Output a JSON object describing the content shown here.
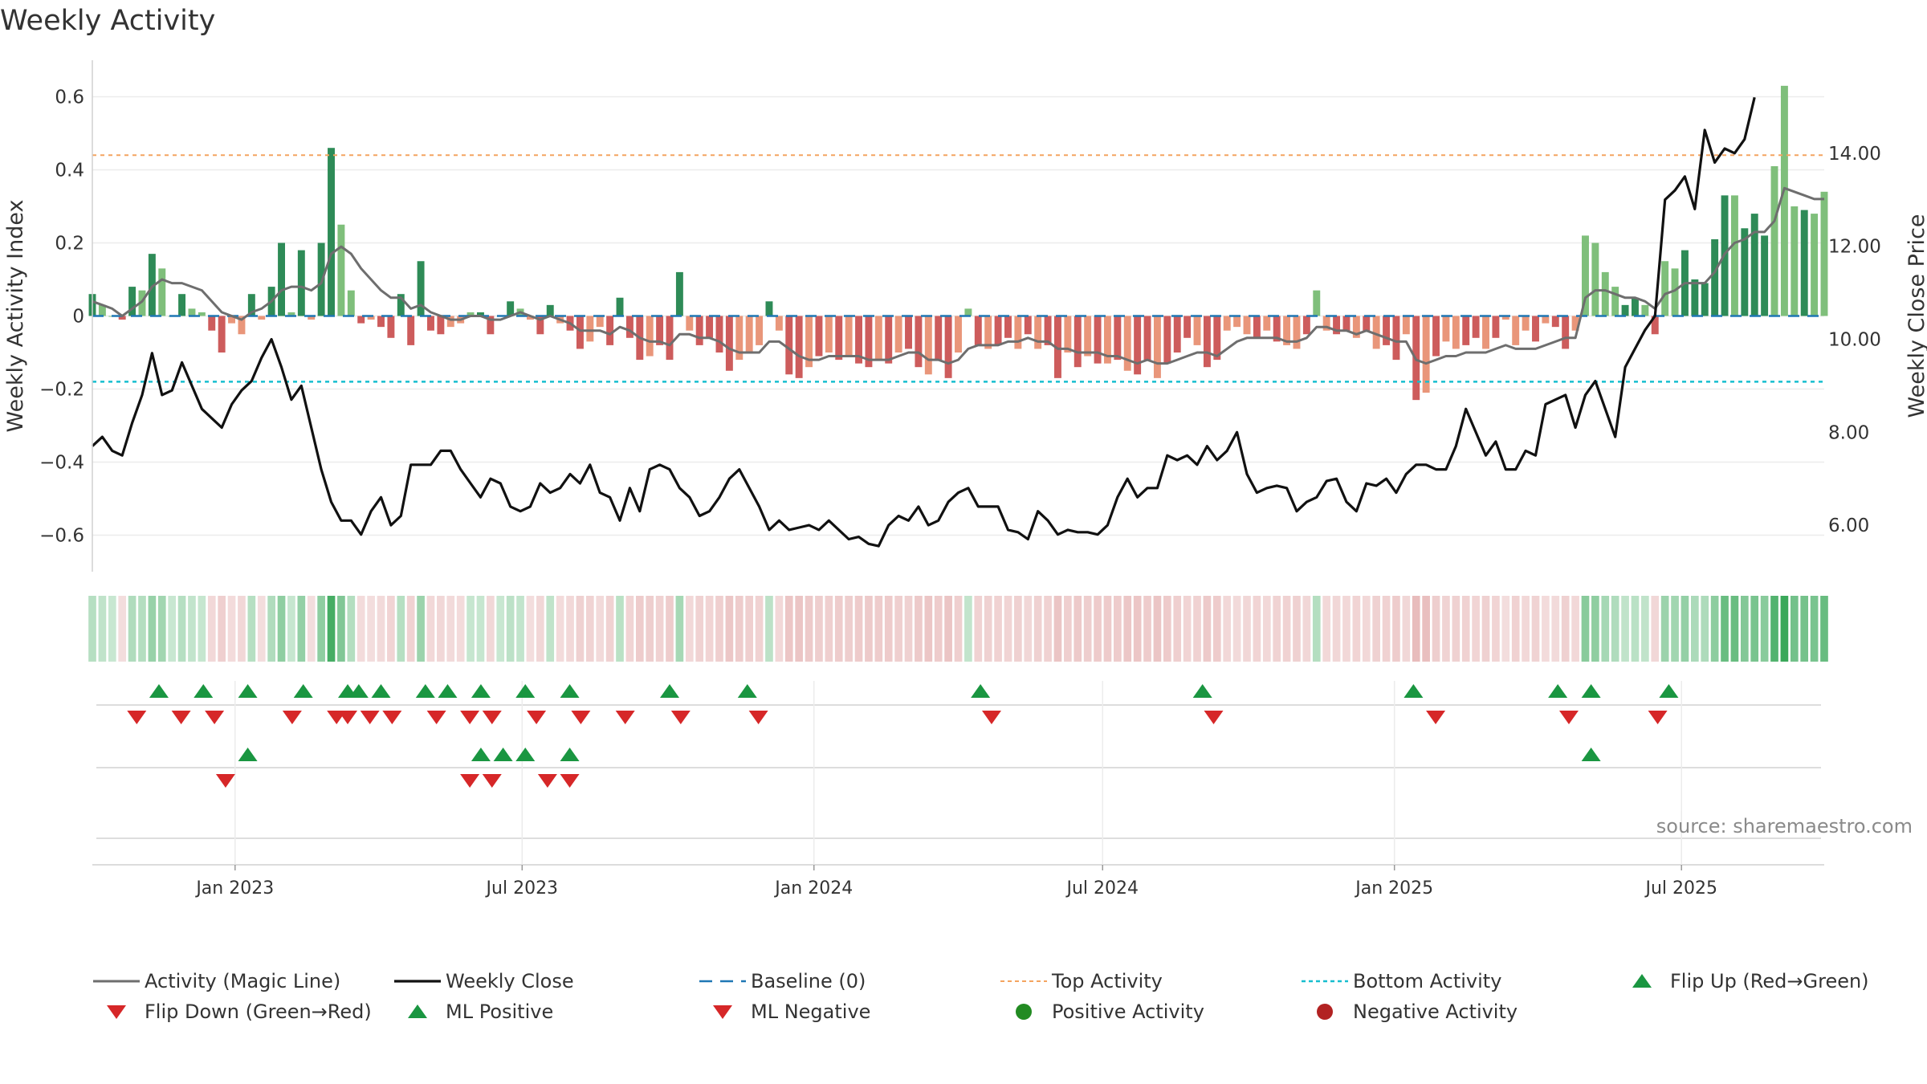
{
  "title": "Weekly Activity",
  "source": "source: sharemaestro.com",
  "colors": {
    "pos_strong": "#2e8b57",
    "pos_light": "#7fbf7b",
    "neg_strong": "#cd5c5c",
    "neg_light": "#e9967a",
    "magic_line": "#6e6e6e",
    "close": "#111111",
    "baseline": "#1f77b4",
    "top": "#f4a460",
    "bottom": "#17becf",
    "flip_up": "#1a9641",
    "flip_down": "#d62728"
  },
  "chart_data": {
    "type": "bar+line",
    "title": "Weekly Activity",
    "ylabel_left": "Weekly Activity Index",
    "ylabel_right": "Weekly Close Price",
    "ylim_left": [
      -0.7,
      0.7
    ],
    "ylim_right": [
      5.0,
      16.0
    ],
    "left_ticks": [
      0.6,
      0.4,
      0.2,
      0,
      -0.2,
      -0.4,
      -0.6
    ],
    "left_tick_labels": [
      "0.6",
      "0.4",
      "0.2",
      "0",
      "−0.2",
      "−0.4",
      "−0.6"
    ],
    "right_ticks": [
      14.0,
      12.0,
      10.0,
      8.0,
      6.0
    ],
    "right_tick_labels": [
      "14.00",
      "12.00",
      "10.00",
      "8.00",
      "6.00"
    ],
    "x_start": "2022-10-03",
    "x_end": "2025-09-29",
    "x_ticks": [
      "2023-01-01",
      "2023-07-01",
      "2024-01-01",
      "2024-07-01",
      "2025-01-01",
      "2025-07-01"
    ],
    "x_tick_labels": [
      "Jan 2023",
      "Jul 2023",
      "Jan 2024",
      "Jul 2024",
      "Jan 2025",
      "Jul 2025"
    ],
    "top_activity": 0.44,
    "bottom_activity": -0.18,
    "baseline": 0,
    "activity": [
      0.06,
      0.03,
      0.0,
      -0.01,
      0.08,
      0.07,
      0.17,
      0.13,
      0.0,
      0.06,
      0.02,
      0.01,
      -0.04,
      -0.1,
      -0.02,
      -0.05,
      0.06,
      -0.01,
      0.08,
      0.2,
      0.01,
      0.18,
      -0.01,
      0.2,
      0.46,
      0.25,
      0.07,
      -0.02,
      -0.01,
      -0.03,
      -0.06,
      0.06,
      -0.08,
      0.15,
      -0.04,
      -0.05,
      -0.03,
      -0.02,
      0.01,
      0.01,
      -0.05,
      0.0,
      0.04,
      0.02,
      -0.01,
      -0.05,
      0.03,
      -0.02,
      -0.04,
      -0.09,
      -0.07,
      -0.03,
      -0.08,
      0.05,
      -0.06,
      -0.12,
      -0.11,
      -0.08,
      -0.12,
      0.12,
      -0.04,
      -0.08,
      -0.06,
      -0.1,
      -0.15,
      -0.12,
      -0.1,
      -0.08,
      0.04,
      -0.04,
      -0.16,
      -0.17,
      -0.14,
      -0.11,
      -0.1,
      -0.12,
      -0.11,
      -0.13,
      -0.14,
      -0.12,
      -0.13,
      -0.1,
      -0.09,
      -0.14,
      -0.16,
      -0.12,
      -0.17,
      -0.1,
      0.02,
      -0.08,
      -0.09,
      -0.08,
      -0.06,
      -0.09,
      -0.05,
      -0.09,
      -0.08,
      -0.17,
      -0.1,
      -0.14,
      -0.11,
      -0.13,
      -0.13,
      -0.12,
      -0.15,
      -0.16,
      -0.12,
      -0.17,
      -0.13,
      -0.1,
      -0.06,
      -0.08,
      -0.14,
      -0.12,
      -0.04,
      -0.03,
      -0.05,
      -0.06,
      -0.04,
      -0.07,
      -0.08,
      -0.09,
      -0.05,
      0.07,
      -0.04,
      -0.05,
      -0.04,
      -0.06,
      -0.04,
      -0.09,
      -0.08,
      -0.12,
      -0.05,
      -0.23,
      -0.21,
      -0.11,
      -0.07,
      -0.09,
      -0.08,
      -0.06,
      -0.09,
      -0.06,
      -0.01,
      -0.08,
      -0.04,
      -0.07,
      -0.02,
      -0.03,
      -0.09,
      -0.04,
      0.22,
      0.2,
      0.12,
      0.08,
      0.03,
      0.05,
      0.03,
      -0.05,
      0.15,
      0.13,
      0.18,
      0.1,
      0.09,
      0.21,
      0.33,
      0.33,
      0.24,
      0.28,
      0.22,
      0.41,
      0.63,
      0.3,
      0.29,
      0.28,
      0.34
    ],
    "activity_strength": [
      "strong",
      "light",
      "light",
      "strong",
      "strong",
      "light",
      "strong",
      "light",
      "light",
      "strong",
      "light",
      "light",
      "strong",
      "strong",
      "light",
      "light",
      "strong",
      "light",
      "strong",
      "strong",
      "light",
      "strong",
      "light",
      "strong",
      "strong",
      "light",
      "light",
      "strong",
      "light",
      "strong",
      "strong",
      "strong",
      "strong",
      "strong",
      "strong",
      "strong",
      "light",
      "light",
      "light",
      "strong",
      "strong",
      "light",
      "strong",
      "light",
      "light",
      "strong",
      "strong",
      "light",
      "strong",
      "strong",
      "light",
      "light",
      "strong",
      "strong",
      "strong",
      "strong",
      "light",
      "strong",
      "strong",
      "strong",
      "light",
      "strong",
      "strong",
      "strong",
      "strong",
      "light",
      "light",
      "light",
      "strong",
      "light",
      "strong",
      "strong",
      "light",
      "strong",
      "light",
      "strong",
      "light",
      "strong",
      "strong",
      "light",
      "strong",
      "light",
      "strong",
      "strong",
      "light",
      "strong",
      "strong",
      "light",
      "light",
      "strong",
      "light",
      "strong",
      "strong",
      "light",
      "strong",
      "light",
      "strong",
      "strong",
      "light",
      "strong",
      "light",
      "strong",
      "light",
      "strong",
      "light",
      "strong",
      "strong",
      "light",
      "strong",
      "strong",
      "strong",
      "light",
      "strong",
      "strong",
      "light",
      "light",
      "light",
      "strong",
      "light",
      "strong",
      "light",
      "light",
      "strong",
      "light",
      "light",
      "strong",
      "strong",
      "light",
      "strong",
      "light",
      "strong",
      "strong",
      "light",
      "strong",
      "light",
      "strong",
      "light",
      "light",
      "strong",
      "strong",
      "light",
      "strong",
      "light",
      "light",
      "light",
      "strong",
      "light",
      "strong",
      "strong",
      "light",
      "light",
      "light",
      "light",
      "light",
      "strong",
      "strong",
      "light",
      "strong",
      "light",
      "light",
      "strong",
      "strong",
      "strong",
      "strong",
      "strong",
      "light",
      "strong",
      "strong",
      "strong",
      "light",
      "light",
      "light",
      "strong"
    ],
    "magic_line": [
      0.04,
      0.03,
      0.02,
      0.0,
      0.02,
      0.04,
      0.08,
      0.1,
      0.09,
      0.09,
      0.08,
      0.07,
      0.04,
      0.01,
      0.0,
      -0.01,
      0.01,
      0.02,
      0.04,
      0.07,
      0.08,
      0.08,
      0.07,
      0.09,
      0.17,
      0.19,
      0.17,
      0.13,
      0.1,
      0.07,
      0.05,
      0.05,
      0.02,
      0.03,
      0.01,
      0.0,
      -0.01,
      -0.01,
      0.0,
      0.0,
      -0.01,
      -0.01,
      0.0,
      0.01,
      0.0,
      -0.01,
      0.0,
      -0.01,
      -0.02,
      -0.04,
      -0.04,
      -0.04,
      -0.05,
      -0.03,
      -0.04,
      -0.06,
      -0.07,
      -0.07,
      -0.08,
      -0.05,
      -0.05,
      -0.06,
      -0.06,
      -0.07,
      -0.09,
      -0.1,
      -0.1,
      -0.1,
      -0.07,
      -0.07,
      -0.09,
      -0.11,
      -0.12,
      -0.12,
      -0.11,
      -0.11,
      -0.11,
      -0.11,
      -0.12,
      -0.12,
      -0.12,
      -0.11,
      -0.1,
      -0.1,
      -0.12,
      -0.12,
      -0.13,
      -0.12,
      -0.09,
      -0.08,
      -0.08,
      -0.08,
      -0.07,
      -0.07,
      -0.06,
      -0.07,
      -0.07,
      -0.09,
      -0.09,
      -0.1,
      -0.1,
      -0.1,
      -0.11,
      -0.11,
      -0.12,
      -0.13,
      -0.12,
      -0.13,
      -0.13,
      -0.12,
      -0.11,
      -0.1,
      -0.1,
      -0.11,
      -0.09,
      -0.07,
      -0.06,
      -0.06,
      -0.06,
      -0.06,
      -0.07,
      -0.07,
      -0.06,
      -0.03,
      -0.03,
      -0.04,
      -0.04,
      -0.05,
      -0.04,
      -0.05,
      -0.06,
      -0.07,
      -0.07,
      -0.12,
      -0.13,
      -0.12,
      -0.11,
      -0.11,
      -0.1,
      -0.1,
      -0.1,
      -0.09,
      -0.08,
      -0.09,
      -0.09,
      -0.09,
      -0.08,
      -0.07,
      -0.06,
      -0.06,
      0.05,
      0.07,
      0.07,
      0.06,
      0.05,
      0.05,
      0.04,
      0.02,
      0.06,
      0.07,
      0.09,
      0.09,
      0.09,
      0.12,
      0.17,
      0.2,
      0.21,
      0.23,
      0.23,
      0.26,
      0.35,
      0.34,
      0.33,
      0.32,
      0.32
    ],
    "weekly_close": [
      7.7,
      7.9,
      7.6,
      7.5,
      8.2,
      8.8,
      9.7,
      8.8,
      8.9,
      9.5,
      9.0,
      8.5,
      8.3,
      8.1,
      8.6,
      8.9,
      9.1,
      9.6,
      10.0,
      9.4,
      8.7,
      9.0,
      8.1,
      7.2,
      6.5,
      6.1,
      6.1,
      5.8,
      6.3,
      6.6,
      6.0,
      6.2,
      7.3,
      7.3,
      7.3,
      7.6,
      7.6,
      7.2,
      6.9,
      6.6,
      7.0,
      6.9,
      6.4,
      6.3,
      6.4,
      6.9,
      6.7,
      6.8,
      7.1,
      6.9,
      7.3,
      6.7,
      6.6,
      6.1,
      6.8,
      6.3,
      7.2,
      7.3,
      7.2,
      6.8,
      6.6,
      6.2,
      6.3,
      6.6,
      7.0,
      7.2,
      6.8,
      6.4,
      5.9,
      6.1,
      5.9,
      5.95,
      6.0,
      5.9,
      6.1,
      5.9,
      5.7,
      5.75,
      5.6,
      5.55,
      6.0,
      6.2,
      6.1,
      6.4,
      6.0,
      6.1,
      6.5,
      6.7,
      6.8,
      6.4,
      6.4,
      6.4,
      5.9,
      5.85,
      5.7,
      6.3,
      6.1,
      5.8,
      5.9,
      5.85,
      5.85,
      5.8,
      6.0,
      6.6,
      7.0,
      6.6,
      6.8,
      6.8,
      7.5,
      7.4,
      7.5,
      7.3,
      7.7,
      7.4,
      7.6,
      8.0,
      7.1,
      6.7,
      6.8,
      6.85,
      6.8,
      6.3,
      6.5,
      6.6,
      6.95,
      7.0,
      6.5,
      6.3,
      6.9,
      6.85,
      7.0,
      6.7,
      7.1,
      7.3,
      7.3,
      7.2,
      7.2,
      7.7,
      8.5,
      8.0,
      7.5,
      7.8,
      7.2,
      7.2,
      7.6,
      7.5,
      8.6,
      8.7,
      8.8,
      8.1,
      8.8,
      9.1,
      8.5,
      7.9,
      9.4,
      9.8,
      10.2,
      10.5,
      13.0,
      13.2,
      13.5,
      12.8,
      14.5,
      13.8,
      14.1,
      14.0,
      14.3,
      15.2
    ],
    "flip_up": [
      "2022-11-14",
      "2022-12-12",
      "2023-01-09",
      "2023-02-13",
      "2023-03-13",
      "2023-03-20",
      "2023-04-03",
      "2023-05-01",
      "2023-05-15",
      "2023-06-05",
      "2023-07-03",
      "2023-07-31",
      "2023-10-02",
      "2023-11-20",
      "2024-04-15",
      "2024-09-02",
      "2025-01-13",
      "2025-04-14",
      "2025-05-05",
      "2025-06-23"
    ],
    "flip_down": [
      "2022-10-31",
      "2022-11-28",
      "2022-12-19",
      "2023-02-06",
      "2023-03-06",
      "2023-03-13",
      "2023-03-27",
      "2023-04-10",
      "2023-05-08",
      "2023-05-29",
      "2023-06-12",
      "2023-07-10",
      "2023-08-07",
      "2023-09-04",
      "2023-10-09",
      "2023-11-27",
      "2024-04-22",
      "2024-09-09",
      "2025-01-27",
      "2025-04-21",
      "2025-06-16"
    ],
    "ml_positive": [
      "2023-01-09",
      "2023-06-05",
      "2023-06-19",
      "2023-07-03",
      "2023-07-31",
      "2025-05-05"
    ],
    "ml_negative": [
      "2022-12-26",
      "2023-05-29",
      "2023-06-12",
      "2023-07-17",
      "2023-07-31"
    ],
    "legend": [
      {
        "label": "Activity (Magic Line)",
        "key": "magic"
      },
      {
        "label": "Weekly Close",
        "key": "close"
      },
      {
        "label": "Baseline (0)",
        "key": "baseline"
      },
      {
        "label": "Top Activity",
        "key": "top"
      },
      {
        "label": "Bottom Activity",
        "key": "bottom"
      },
      {
        "label": "Flip Up (Red→Green)",
        "key": "flip_up"
      },
      {
        "label": "Flip Down (Green→Red)",
        "key": "flip_down"
      },
      {
        "label": "ML Positive",
        "key": "ml_pos"
      },
      {
        "label": "ML Negative",
        "key": "ml_neg"
      },
      {
        "label": "Positive Activity",
        "key": "pos_act"
      },
      {
        "label": "Negative Activity",
        "key": "neg_act"
      }
    ]
  }
}
